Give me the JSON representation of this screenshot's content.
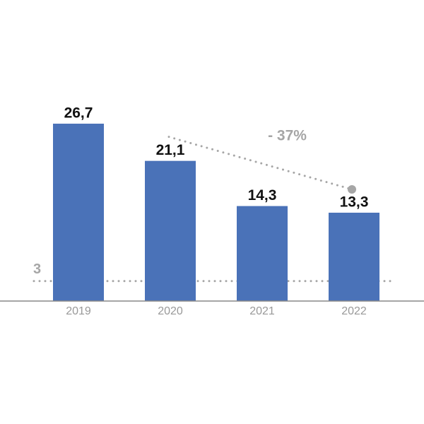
{
  "chart_data": {
    "type": "bar",
    "categories": [
      "2019",
      "2020",
      "2021",
      "2022"
    ],
    "values": [
      26.7,
      21.1,
      14.3,
      13.3
    ],
    "value_labels": [
      "26,7",
      "21,1",
      "14,3",
      "13,3"
    ],
    "color": "#4a72b8",
    "ylim": [
      0,
      45
    ],
    "reference_line": {
      "value": 3,
      "color": "#a6a6a6"
    },
    "annotation": "- 37%"
  }
}
